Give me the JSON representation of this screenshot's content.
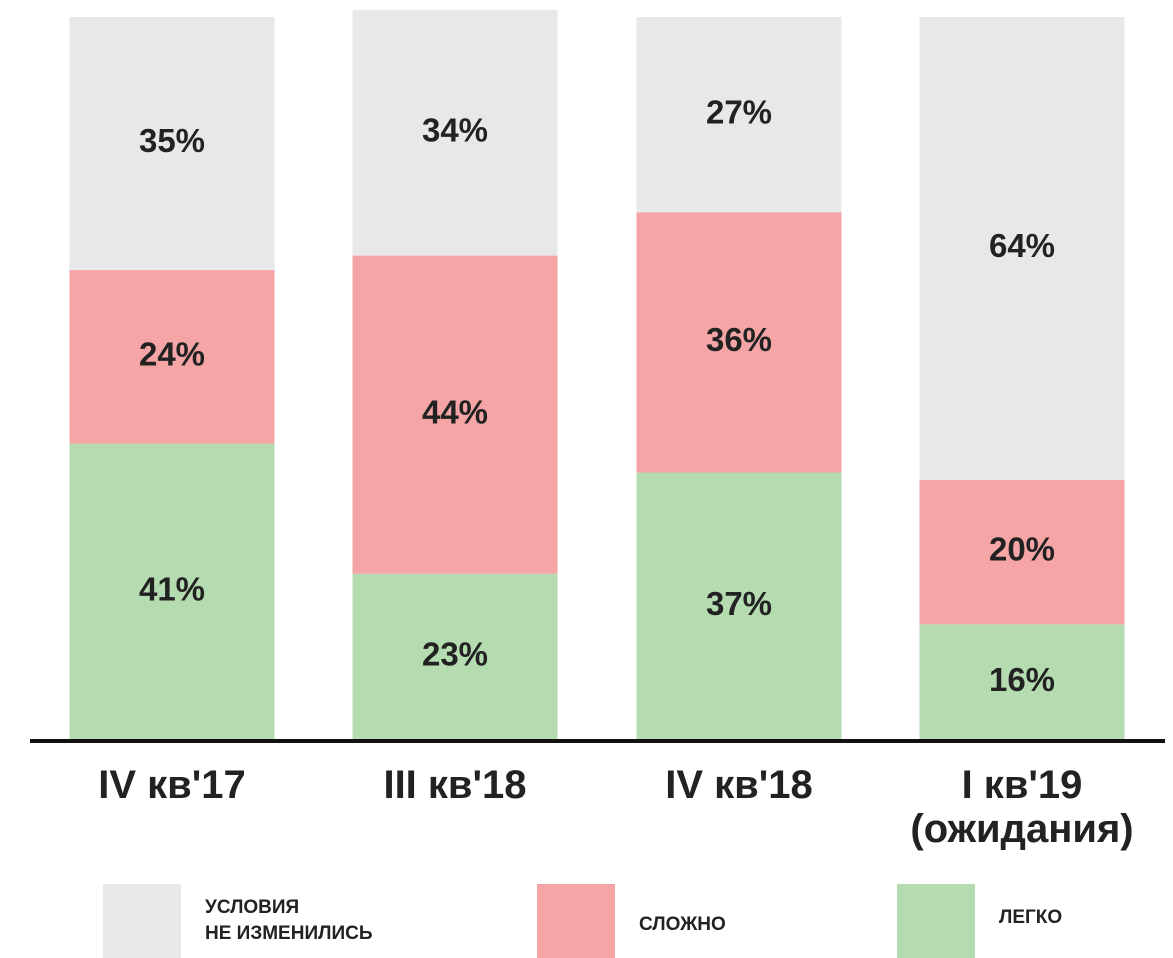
{
  "chart_data": {
    "type": "stacked_bar",
    "categories": [
      "IV кв'17",
      "III кв'18",
      "IV кв'18",
      "I кв'19\n(ожидания)"
    ],
    "series": [
      {
        "name": "УСЛОВИЯ\nНЕ ИЗМЕНИЛИСЬ",
        "color": "#e8e8e8",
        "values": [
          35,
          34,
          27,
          64
        ],
        "value_labels": [
          "35%",
          "34%",
          "27%",
          "64%"
        ]
      },
      {
        "name": "СЛОЖНО",
        "color": "#f5a5a5",
        "values": [
          24,
          44,
          36,
          20
        ],
        "value_labels": [
          "24%",
          "44%",
          "36%",
          "20%"
        ]
      },
      {
        "name": "ЛЕГКО",
        "color": "#b5dbb0",
        "values": [
          41,
          23,
          37,
          16
        ],
        "value_labels": [
          "41%",
          "23%",
          "37%",
          "16%"
        ]
      }
    ],
    "stack_order": "bottom_up_reverse",
    "ylim": [
      0,
      100
    ],
    "legend": "bottom"
  }
}
